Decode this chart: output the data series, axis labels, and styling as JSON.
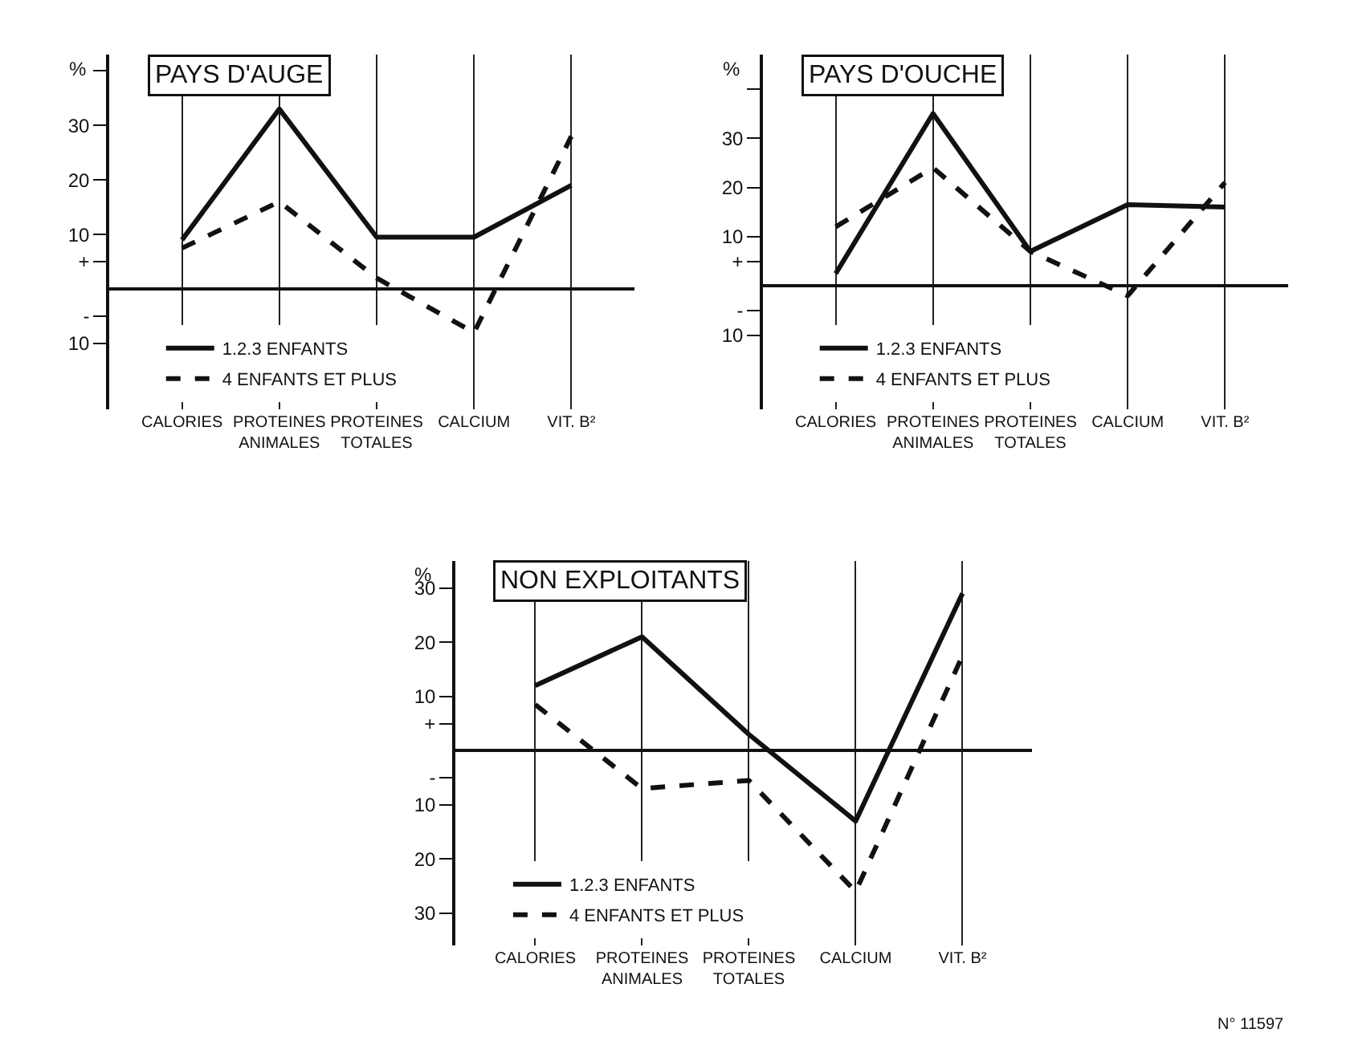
{
  "chart_data": [
    {
      "type": "line",
      "title": "PAYS D'AUGE",
      "ylabel": "%",
      "categories": [
        "CALORIES",
        "PROTEINES ANIMALES",
        "PROTEINES TOTALES",
        "CALCIUM",
        "VIT. B²"
      ],
      "ylim": [
        -22,
        43
      ],
      "yticks": [
        {
          "value": 40,
          "label": null
        },
        30,
        20,
        10,
        {
          "value": 5,
          "label": "+"
        },
        {
          "value": -5,
          "label": "-"
        },
        {
          "value": -10,
          "label": "10"
        }
      ],
      "grid": "x",
      "legend": "bottom left",
      "marker": "none",
      "series": [
        {
          "name": "1.2.3 ENFANTS",
          "color": "#111111",
          "line_style": "solid",
          "values": [
            9,
            33,
            9.5,
            9.5,
            19
          ]
        },
        {
          "name": "4 ENFANTS ET PLUS",
          "color": "#111111",
          "line_style": "dashed",
          "values": [
            7.5,
            16,
            2,
            -8,
            28
          ]
        }
      ]
    },
    {
      "type": "line",
      "title": "PAYS D'OUCHE",
      "ylabel": "%",
      "categories": [
        "CALORIES",
        "PROTEINES ANIMALES",
        "PROTEINES TOTALES",
        "CALCIUM",
        "VIT. B²"
      ],
      "ylim": [
        -25,
        47
      ],
      "yticks": [
        {
          "value": 40,
          "label": null
        },
        30,
        20,
        10,
        {
          "value": 5,
          "label": "+"
        },
        {
          "value": -5,
          "label": "-"
        },
        {
          "value": -10,
          "label": "10"
        }
      ],
      "grid": "x",
      "legend": "bottom left",
      "marker": "none",
      "series": [
        {
          "name": "1.2.3 ENFANTS",
          "color": "#111111",
          "line_style": "solid",
          "values": [
            2.5,
            35,
            7,
            16.5,
            16
          ]
        },
        {
          "name": "4 ENFANTS ET PLUS",
          "color": "#111111",
          "line_style": "dashed",
          "values": [
            12,
            24,
            7,
            -2,
            21
          ]
        }
      ]
    },
    {
      "type": "line",
      "title": "NON EXPLOITANTS",
      "ylabel": "%",
      "categories": [
        "CALORIES",
        "PROTEINES ANIMALES",
        "PROTEINES TOTALES",
        "CALCIUM",
        "VIT. B²"
      ],
      "ylim": [
        -36,
        35
      ],
      "yticks": [
        30,
        20,
        10,
        {
          "value": 5,
          "label": "+"
        },
        {
          "value": -5,
          "label": "-"
        },
        {
          "value": -10,
          "label": "10"
        },
        {
          "value": -20,
          "label": "20"
        },
        {
          "value": -30,
          "label": "30"
        }
      ],
      "grid": "x",
      "legend": "bottom left",
      "marker": "none",
      "annotations": [
        "N° 11597"
      ],
      "series": [
        {
          "name": "1.2.3 ENFANTS",
          "color": "#111111",
          "line_style": "solid",
          "values": [
            12,
            21,
            3,
            -13,
            29
          ]
        },
        {
          "name": "4 ENFANTS ET PLUS",
          "color": "#111111",
          "line_style": "dashed",
          "values": [
            8.5,
            -7,
            -5.5,
            -26,
            17.5
          ]
        }
      ]
    }
  ]
}
